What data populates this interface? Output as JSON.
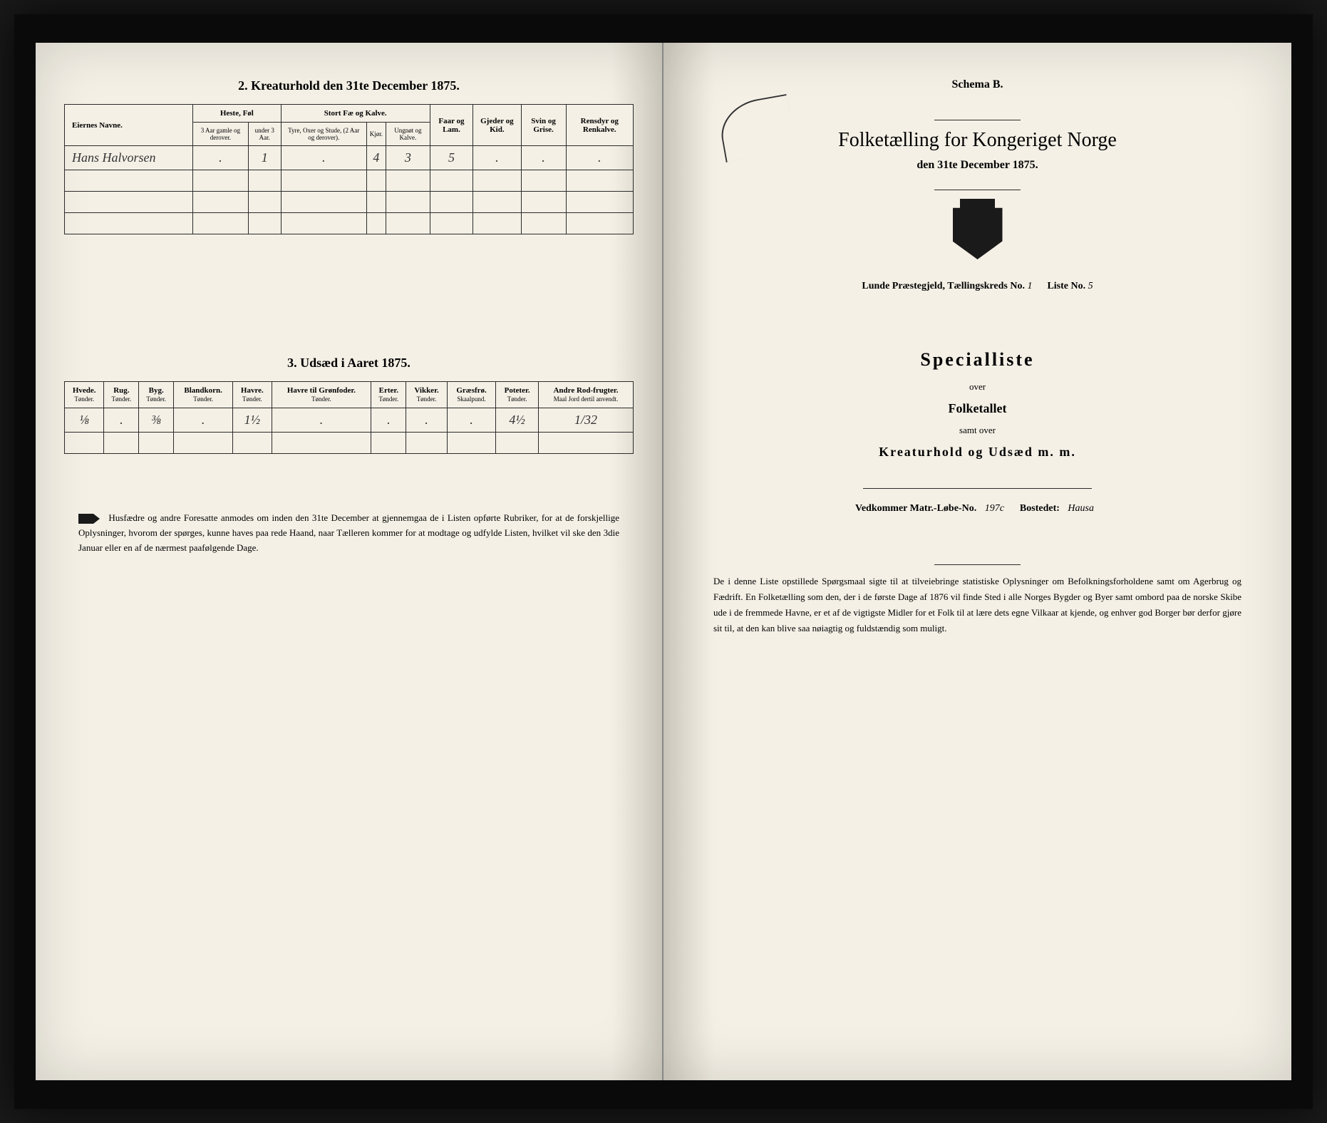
{
  "left": {
    "table2": {
      "title": "2. Kreaturhold den 31te December 1875.",
      "headers": {
        "eier": "Eiernes Navne.",
        "heste": "Heste, Føl",
        "heste_sub1": "3 Aar gamle og derover.",
        "heste_sub2": "under 3 Aar.",
        "stort": "Stort Fæ og Kalve.",
        "stort_sub1": "Tyre, Oxer og Stude, (2 Aar og derover).",
        "stort_sub2": "Kjør.",
        "stort_sub3": "Ungnøt og Kalve.",
        "faar": "Faar og Lam.",
        "gjeder": "Gjeder og Kid.",
        "svin": "Svin og Grise.",
        "rensdyr": "Rensdyr og Renkalve."
      },
      "row": {
        "name": "Hans Halvorsen",
        "v1": ".",
        "v2": "1",
        "v3": ".",
        "v4": "4",
        "v5": "3",
        "v6": "5",
        "v7": ".",
        "v8": ".",
        "v9": "."
      }
    },
    "table3": {
      "title": "3. Udsæd i Aaret 1875.",
      "headers": {
        "hvede": "Hvede.",
        "rug": "Rug.",
        "byg": "Byg.",
        "bland": "Blandkorn.",
        "havre": "Havre.",
        "havre_gron": "Havre til Grønfoder.",
        "erter": "Erter.",
        "vikker": "Vikker.",
        "graes": "Græsfrø.",
        "poteter": "Poteter.",
        "andre": "Andre Rod-frugter."
      },
      "sub": "Tønder.",
      "sub_graes": "Skaalpund.",
      "sub_andre": "Maal Jord dertil anvendt.",
      "row": {
        "v1": "⅛",
        "v2": ".",
        "v3": "⅜",
        "v4": ".",
        "v5": "1½",
        "v6": ".",
        "v7": ".",
        "v8": ".",
        "v9": ".",
        "v10": "4½",
        "v11": "1/32"
      }
    },
    "footer": "Husfædre og andre Foresatte anmodes om inden den 31te December at gjennemgaa de i Listen opførte Rubriker, for at de forskjellige Oplysninger, hvorom der spørges, kunne haves paa rede Haand, naar Tælleren kommer for at modtage og udfylde Listen, hvilket vil ske den 3die Januar eller en af de nærmest paafølgende Dage."
  },
  "right": {
    "schema": "Schema B.",
    "title": "Folketælling for Kongeriget Norge",
    "date": "den 31te December 1875.",
    "parish_prefix": "Lunde Præstegjeld, Tællingskreds No.",
    "parish_no": "1",
    "liste_prefix": "Liste No.",
    "liste_no": "5",
    "special": "Specialliste",
    "over": "over",
    "folketallet": "Folketallet",
    "samt": "samt over",
    "kreatur": "Kreaturhold og Udsæd m. m.",
    "vedk_prefix": "Vedkommer Matr.-Løbe-No.",
    "vedk_no": "197c",
    "bostedet_prefix": "Bostedet:",
    "bostedet": "Hausa",
    "footer": "De i denne Liste opstillede Spørgsmaal sigte til at tilveiebringe statistiske Oplysninger om Befolkningsforholdene samt om Agerbrug og Fædrift. En Folketælling som den, der i de første Dage af 1876 vil finde Sted i alle Norges Bygder og Byer samt ombord paa de norske Skibe ude i de fremmede Havne, er et af de vigtigste Midler for et Folk til at lære dets egne Vilkaar at kjende, og enhver god Borger bør derfor gjøre sit til, at den kan blive saa nøiagtig og fuldstændig som muligt."
  },
  "colors": {
    "paper": "#f4f0e6",
    "ink": "#1a1a1a",
    "border": "#2a2a2a"
  }
}
